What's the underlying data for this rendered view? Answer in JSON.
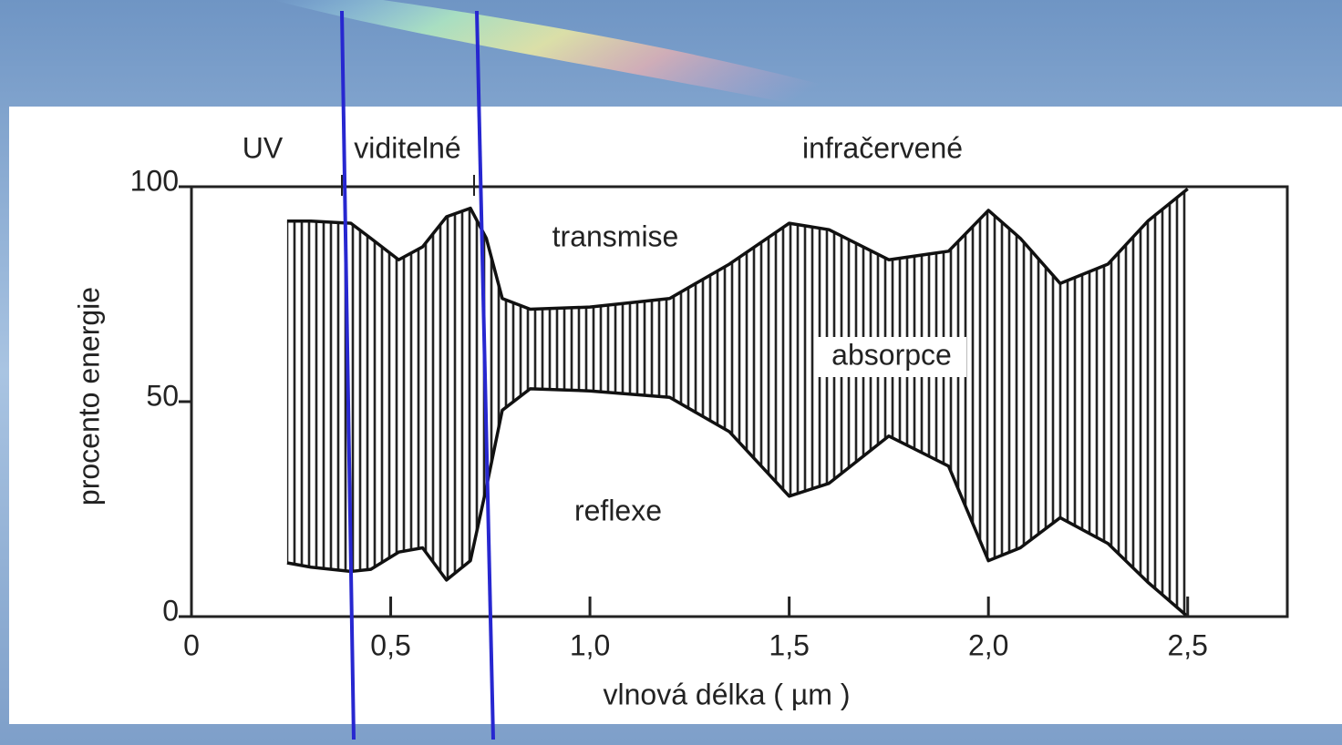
{
  "chart_data": {
    "type": "area",
    "region_labels": [
      "UV",
      "viditelné",
      "infračervené"
    ],
    "annotations": [
      "transmise",
      "absorpce",
      "reflexe"
    ],
    "x_label": "vlnová délka ( µm )",
    "y_label": "procento energie",
    "x": [
      0.24,
      0.3,
      0.4,
      0.45,
      0.52,
      0.58,
      0.64,
      0.7,
      0.74,
      0.78,
      0.85,
      1.0,
      1.2,
      1.35,
      1.5,
      1.6,
      1.75,
      1.9,
      2.0,
      2.08,
      2.18,
      2.3,
      2.4,
      2.5
    ],
    "series": [
      {
        "color": "#111111",
        "values": [
          92,
          92,
          91.5,
          88,
          83,
          86,
          93,
          95,
          88,
          74,
          71.5,
          72,
          74,
          82,
          91.5,
          90,
          83,
          85,
          94.5,
          88,
          77.5,
          82,
          92,
          99.5
        ]
      },
      {
        "color": "#111111",
        "values": [
          12.5,
          11.5,
          10.5,
          11,
          15,
          16,
          8.5,
          13,
          30,
          48,
          53,
          52.5,
          51,
          43,
          28,
          31,
          42,
          35,
          13,
          16,
          23,
          17,
          8,
          0
        ]
      }
    ],
    "xlim": [
      0,
      2.75
    ],
    "ylim": [
      0,
      100
    ],
    "xticks": [
      0,
      {
        "value": 0.5,
        "label": "0,5"
      },
      {
        "value": 1.0,
        "label": "1,0"
      },
      {
        "value": 1.5,
        "label": "1,5"
      },
      {
        "value": 2.0,
        "label": "2,0"
      },
      {
        "value": 2.5,
        "label": "2,5"
      }
    ],
    "yticks": [
      0,
      50,
      100
    ]
  }
}
